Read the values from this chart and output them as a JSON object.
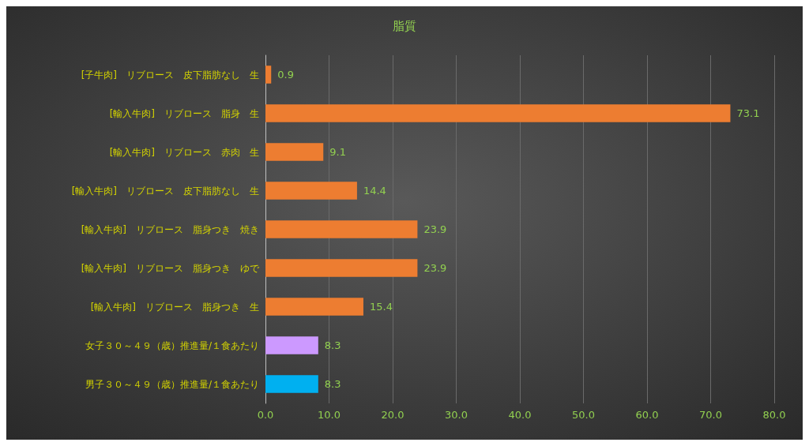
{
  "chart_data": {
    "type": "bar",
    "orientation": "horizontal",
    "title": "脂質",
    "categories": [
      "[子牛肉]　リブロース　皮下脂肪なし　生",
      "[輸入牛肉]　リブロース　脂身　生",
      "[輸入牛肉]　リブロース　赤肉　生",
      "[輸入牛肉]　リブロース　皮下脂肪なし　生",
      "[輸入牛肉]　リブロース　脂身つき　焼き",
      "[輸入牛肉]　リブロース　脂身つき　ゆで",
      "[輸入牛肉]　リブロース　脂身つき　生",
      "女子３０～４９（歳）推進量/１食あたり",
      "男子３０～４９（歳）推進量/１食あたり"
    ],
    "values": [
      0.9,
      73.1,
      9.1,
      14.4,
      23.9,
      23.9,
      15.4,
      8.3,
      8.3
    ],
    "colors": [
      "#ed7d31",
      "#ed7d31",
      "#ed7d31",
      "#ed7d31",
      "#ed7d31",
      "#ed7d31",
      "#ed7d31",
      "#cc99ff",
      "#00b0f0"
    ],
    "xlim": [
      0,
      80
    ],
    "xticks": [
      {
        "value": 0,
        "label": "0.0"
      },
      {
        "value": 10,
        "label": "10.0"
      },
      {
        "value": 20,
        "label": "20.0"
      },
      {
        "value": 30,
        "label": "30.0"
      },
      {
        "value": 40,
        "label": "40.0"
      },
      {
        "value": 50,
        "label": "50.0"
      },
      {
        "value": 60,
        "label": "60.0"
      },
      {
        "value": 70,
        "label": "70.0"
      },
      {
        "value": 80,
        "label": "80.0"
      }
    ],
    "grid": "x",
    "data_labels": true
  }
}
